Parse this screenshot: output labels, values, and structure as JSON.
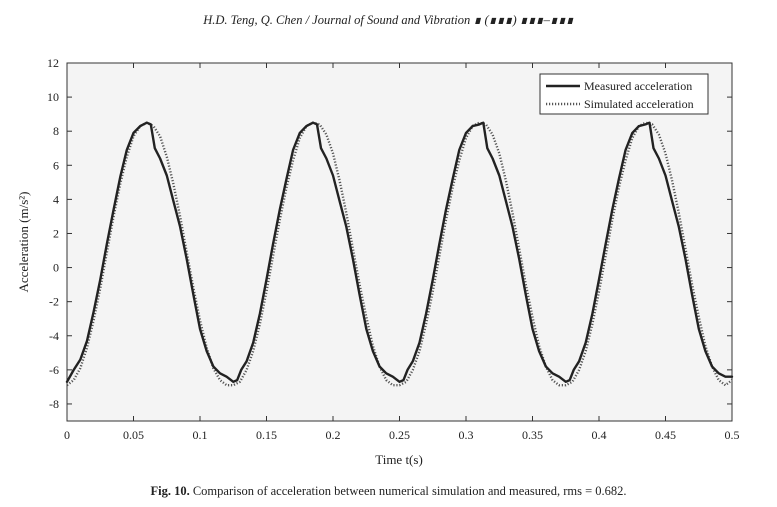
{
  "header": {
    "running_head": "H.D. Teng, Q. Chen / Journal of Sound and Vibration ∎ (∎∎∎) ∎∎∎–∎∎∎"
  },
  "caption": {
    "label": "Fig. 10.",
    "text": "Comparison of acceleration between numerical simulation and measured, rms = 0.682."
  },
  "chart_data": {
    "type": "line",
    "title": "",
    "xlabel": "Time t(s)",
    "ylabel": "Acceleration (m/s²)",
    "xlim": [
      0,
      0.5
    ],
    "ylim": [
      -9,
      12
    ],
    "x_ticks": [
      "0",
      "0.05",
      "0.1",
      "0.15",
      "0.2",
      "0.25",
      "0.3",
      "0.35",
      "0.4",
      "0.45",
      "0.5"
    ],
    "y_ticks": [
      "12",
      "10",
      "8",
      "6",
      "4",
      "2",
      "0",
      "-2",
      "-4",
      "-6",
      "-8"
    ],
    "grid": false,
    "legend_position": "top-right",
    "series": [
      {
        "name": "Measured acceleration",
        "style": "solid",
        "color": "#222222",
        "x": [
          0,
          0.005,
          0.01,
          0.015,
          0.02,
          0.025,
          0.03,
          0.035,
          0.04,
          0.045,
          0.05,
          0.055,
          0.06,
          0.063,
          0.066,
          0.07,
          0.075,
          0.08,
          0.085,
          0.09,
          0.095,
          0.1,
          0.105,
          0.11,
          0.115,
          0.12,
          0.125,
          0.128,
          0.131,
          0.135,
          0.14,
          0.145,
          0.15,
          0.155,
          0.16,
          0.165,
          0.17,
          0.175,
          0.18,
          0.185,
          0.188,
          0.191,
          0.195,
          0.2,
          0.205,
          0.21,
          0.215,
          0.22,
          0.225,
          0.23,
          0.235,
          0.24,
          0.245,
          0.25,
          0.253,
          0.256,
          0.26,
          0.265,
          0.27,
          0.275,
          0.28,
          0.285,
          0.29,
          0.295,
          0.3,
          0.305,
          0.31,
          0.313,
          0.316,
          0.32,
          0.325,
          0.33,
          0.335,
          0.34,
          0.345,
          0.35,
          0.355,
          0.36,
          0.365,
          0.37,
          0.375,
          0.378,
          0.381,
          0.385,
          0.39,
          0.395,
          0.4,
          0.405,
          0.41,
          0.415,
          0.42,
          0.425,
          0.43,
          0.435,
          0.438,
          0.441,
          0.445,
          0.45,
          0.455,
          0.46,
          0.465,
          0.47,
          0.475,
          0.48,
          0.485,
          0.49,
          0.495,
          0.5
        ],
        "y": [
          -6.7,
          -6.0,
          -5.4,
          -4.3,
          -2.6,
          -0.7,
          1.4,
          3.4,
          5.3,
          6.9,
          7.9,
          8.3,
          8.5,
          8.4,
          7.0,
          6.4,
          5.4,
          3.9,
          2.4,
          0.5,
          -1.6,
          -3.6,
          -4.9,
          -5.8,
          -6.2,
          -6.4,
          -6.7,
          -6.6,
          -6.0,
          -5.5,
          -4.4,
          -2.7,
          -0.7,
          1.4,
          3.4,
          5.2,
          6.9,
          7.9,
          8.3,
          8.5,
          8.4,
          7.0,
          6.4,
          5.4,
          3.9,
          2.4,
          0.5,
          -1.6,
          -3.6,
          -4.9,
          -5.8,
          -6.2,
          -6.4,
          -6.7,
          -6.6,
          -6.0,
          -5.5,
          -4.4,
          -2.7,
          -0.7,
          1.4,
          3.4,
          5.2,
          6.9,
          7.9,
          8.3,
          8.4,
          8.5,
          7.0,
          6.4,
          5.4,
          3.9,
          2.4,
          0.5,
          -1.6,
          -3.6,
          -4.9,
          -5.8,
          -6.2,
          -6.4,
          -6.7,
          -6.6,
          -6.0,
          -5.5,
          -4.4,
          -2.7,
          -0.7,
          1.4,
          3.4,
          5.2,
          6.9,
          7.9,
          8.3,
          8.4,
          8.5,
          7.0,
          6.4,
          5.4,
          3.9,
          2.4,
          0.5,
          -1.6,
          -3.6,
          -4.9,
          -5.8,
          -6.2,
          -6.4,
          -6.4
        ]
      },
      {
        "name": "Simulated acceleration",
        "style": "dotted",
        "color": "#555555",
        "x": [
          0,
          0.005,
          0.01,
          0.015,
          0.02,
          0.025,
          0.03,
          0.035,
          0.04,
          0.045,
          0.05,
          0.055,
          0.06,
          0.065,
          0.07,
          0.075,
          0.08,
          0.085,
          0.09,
          0.095,
          0.1,
          0.105,
          0.11,
          0.115,
          0.12,
          0.125,
          0.13,
          0.135,
          0.14,
          0.145,
          0.15,
          0.155,
          0.16,
          0.165,
          0.17,
          0.175,
          0.18,
          0.185,
          0.19,
          0.195,
          0.2,
          0.205,
          0.21,
          0.215,
          0.22,
          0.225,
          0.23,
          0.235,
          0.24,
          0.245,
          0.25,
          0.255,
          0.26,
          0.265,
          0.27,
          0.275,
          0.28,
          0.285,
          0.29,
          0.295,
          0.3,
          0.305,
          0.31,
          0.315,
          0.32,
          0.325,
          0.33,
          0.335,
          0.34,
          0.345,
          0.35,
          0.355,
          0.36,
          0.365,
          0.37,
          0.375,
          0.38,
          0.385,
          0.39,
          0.395,
          0.4,
          0.405,
          0.41,
          0.415,
          0.42,
          0.425,
          0.43,
          0.435,
          0.44,
          0.445,
          0.45,
          0.455,
          0.46,
          0.465,
          0.47,
          0.475,
          0.48,
          0.485,
          0.49,
          0.495,
          0.5
        ],
        "y": [
          -6.9,
          -6.6,
          -5.9,
          -4.7,
          -3.1,
          -1.2,
          0.9,
          3.0,
          4.9,
          6.5,
          7.7,
          8.3,
          8.5,
          8.3,
          7.7,
          6.5,
          4.9,
          3.0,
          0.9,
          -1.2,
          -3.1,
          -4.7,
          -5.9,
          -6.6,
          -6.9,
          -6.9,
          -6.7,
          -6.0,
          -4.9,
          -3.3,
          -1.4,
          0.7,
          2.8,
          4.7,
          6.3,
          7.6,
          8.3,
          8.5,
          8.4,
          7.8,
          6.7,
          5.1,
          3.2,
          1.1,
          -1.0,
          -2.9,
          -4.6,
          -5.8,
          -6.6,
          -6.9,
          -6.9,
          -6.7,
          -6.0,
          -4.9,
          -3.3,
          -1.4,
          0.7,
          2.8,
          4.7,
          6.3,
          7.6,
          8.3,
          8.5,
          8.4,
          7.8,
          6.7,
          5.1,
          3.2,
          1.1,
          -1.0,
          -2.9,
          -4.6,
          -5.8,
          -6.6,
          -6.9,
          -6.9,
          -6.7,
          -6.0,
          -4.9,
          -3.3,
          -1.4,
          0.7,
          2.8,
          4.7,
          6.3,
          7.6,
          8.3,
          8.5,
          8.4,
          7.8,
          6.7,
          5.1,
          3.2,
          1.1,
          -1.0,
          -2.9,
          -4.6,
          -5.8,
          -6.6,
          -6.9,
          -6.6
        ]
      }
    ]
  }
}
